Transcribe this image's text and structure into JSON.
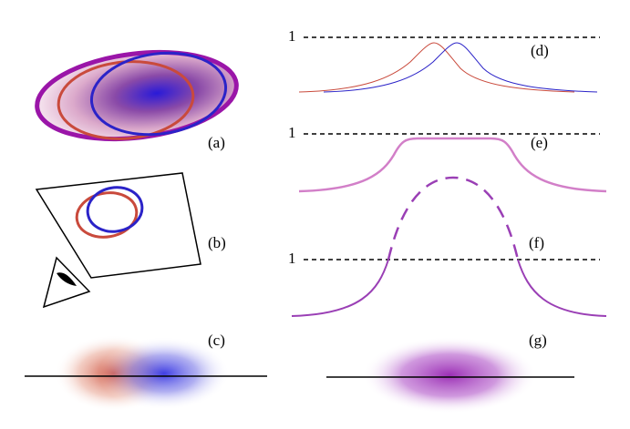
{
  "panels": {
    "a": "(a)",
    "b": "(b)",
    "c": "(c)",
    "d": "(d)",
    "e": "(e)",
    "f": "(f)",
    "g": "(g)"
  },
  "reference_labels": [
    "1",
    "1",
    "1"
  ]
}
